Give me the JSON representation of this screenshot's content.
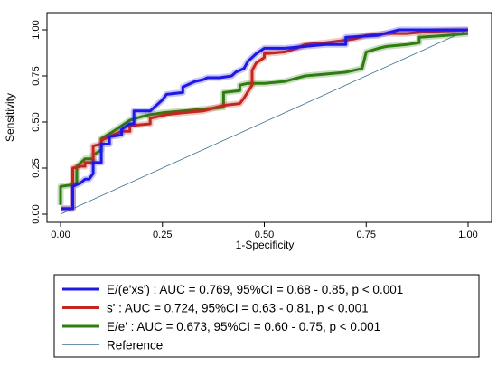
{
  "chart_data": {
    "type": "line",
    "title": "",
    "xlabel": "1-Specificity",
    "ylabel": "Sensitivity",
    "xlim": [
      0,
      1
    ],
    "ylim": [
      0,
      1
    ],
    "x_ticks": [
      "0.00",
      "0.25",
      "0.50",
      "0.75",
      "1.00"
    ],
    "y_ticks": [
      "0.00",
      "0.25",
      "0.50",
      "0.75",
      "1.00"
    ],
    "grid": false,
    "legend_position": "bottom",
    "series": [
      {
        "name": "E/(e'xs') : AUC = 0.769, 95%CI = 0.68 - 0.85, p < 0.001",
        "color": "#1f17e6",
        "x": [
          0.0,
          0.03,
          0.03,
          0.05,
          0.06,
          0.07,
          0.08,
          0.08,
          0.1,
          0.1,
          0.12,
          0.12,
          0.15,
          0.15,
          0.17,
          0.18,
          0.18,
          0.22,
          0.25,
          0.26,
          0.3,
          0.3,
          0.33,
          0.35,
          0.36,
          0.39,
          0.42,
          0.43,
          0.45,
          0.46,
          0.48,
          0.5,
          0.55,
          0.6,
          0.65,
          0.7,
          0.7,
          0.78,
          0.83,
          0.9,
          1.0
        ],
        "y": [
          0.03,
          0.03,
          0.15,
          0.17,
          0.19,
          0.19,
          0.22,
          0.28,
          0.28,
          0.38,
          0.38,
          0.42,
          0.43,
          0.46,
          0.49,
          0.49,
          0.56,
          0.56,
          0.62,
          0.65,
          0.66,
          0.69,
          0.72,
          0.73,
          0.74,
          0.74,
          0.75,
          0.77,
          0.79,
          0.83,
          0.87,
          0.9,
          0.9,
          0.91,
          0.92,
          0.92,
          0.96,
          0.97,
          1.0,
          1.0,
          1.0
        ]
      },
      {
        "name": "s' : AUC = 0.724, 95%CI = 0.63 - 0.81, p < 0.001",
        "color": "#c4261d",
        "x": [
          0.0,
          0.03,
          0.03,
          0.05,
          0.06,
          0.06,
          0.08,
          0.08,
          0.1,
          0.1,
          0.15,
          0.17,
          0.17,
          0.22,
          0.22,
          0.26,
          0.3,
          0.35,
          0.4,
          0.44,
          0.45,
          0.47,
          0.47,
          0.48,
          0.5,
          0.5,
          0.55,
          0.58,
          0.6,
          0.65,
          0.72,
          0.75,
          0.8,
          0.85,
          0.9,
          1.0
        ],
        "y": [
          0.03,
          0.03,
          0.25,
          0.26,
          0.26,
          0.28,
          0.28,
          0.37,
          0.38,
          0.4,
          0.45,
          0.45,
          0.48,
          0.49,
          0.52,
          0.54,
          0.55,
          0.56,
          0.59,
          0.6,
          0.63,
          0.7,
          0.78,
          0.82,
          0.85,
          0.87,
          0.88,
          0.9,
          0.92,
          0.93,
          0.95,
          0.97,
          0.98,
          0.98,
          0.99,
          1.0
        ]
      },
      {
        "name": "E/e' : AUC = 0.673, 95%CI = 0.60 - 0.75, p < 0.001",
        "color": "#2e7d10",
        "x": [
          0.0,
          0.0,
          0.03,
          0.04,
          0.04,
          0.06,
          0.08,
          0.08,
          0.1,
          0.1,
          0.13,
          0.15,
          0.17,
          0.2,
          0.22,
          0.25,
          0.3,
          0.35,
          0.4,
          0.4,
          0.44,
          0.44,
          0.46,
          0.5,
          0.55,
          0.6,
          0.65,
          0.7,
          0.74,
          0.75,
          0.78,
          0.8,
          0.85,
          0.88,
          0.88,
          0.95,
          1.0
        ],
        "y": [
          0.05,
          0.15,
          0.16,
          0.17,
          0.26,
          0.3,
          0.3,
          0.32,
          0.35,
          0.41,
          0.45,
          0.48,
          0.51,
          0.53,
          0.54,
          0.55,
          0.56,
          0.57,
          0.58,
          0.66,
          0.67,
          0.7,
          0.71,
          0.71,
          0.72,
          0.75,
          0.76,
          0.77,
          0.79,
          0.88,
          0.9,
          0.91,
          0.92,
          0.93,
          0.96,
          0.97,
          0.98
        ]
      },
      {
        "name": "Reference",
        "color": "#3a6f8f",
        "x": [
          0,
          1
        ],
        "y": [
          0,
          1
        ]
      }
    ]
  }
}
